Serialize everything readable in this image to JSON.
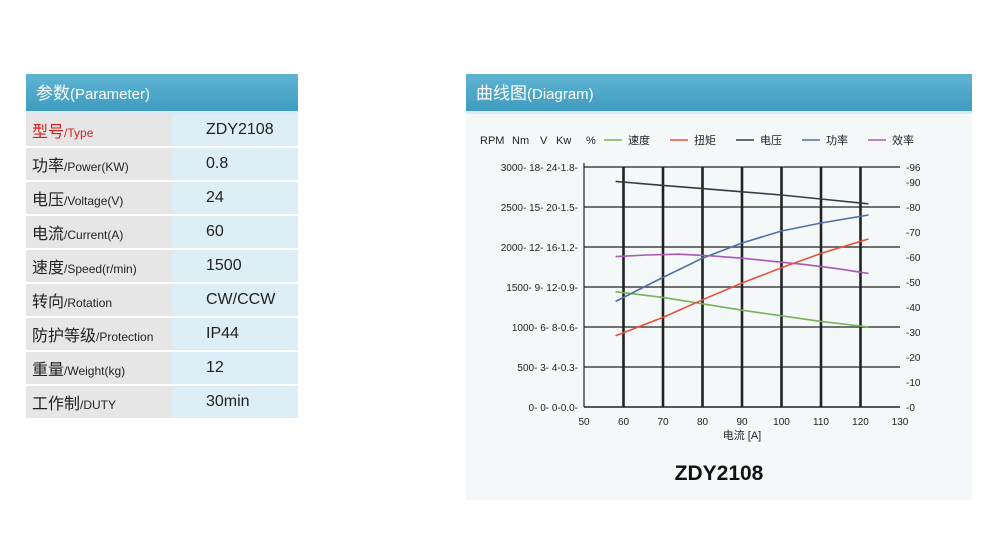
{
  "parameter_panel": {
    "title_cn": "参数",
    "title_en": "(Parameter)",
    "rows": [
      {
        "label_cn": "型号",
        "label_en": "/Type",
        "value": "ZDY2108",
        "highlight": true
      },
      {
        "label_cn": "功率",
        "label_en": "/Power(KW)",
        "value": "0.8"
      },
      {
        "label_cn": "电压",
        "label_en": "/Voltage(V)",
        "value": "24"
      },
      {
        "label_cn": "电流",
        "label_en": "/Current(A)",
        "value": "60"
      },
      {
        "label_cn": "速度",
        "label_en": "/Speed(r/min)",
        "value": "1500"
      },
      {
        "label_cn": "转向",
        "label_en": "/Rotation",
        "value": "CW/CCW"
      },
      {
        "label_cn": "防护等级",
        "label_en": "/Protection",
        "value": "IP44"
      },
      {
        "label_cn": "重量",
        "label_en": "/Weight(kg)",
        "value": "12"
      },
      {
        "label_cn": "工作制",
        "label_en": "/DUTY",
        "value": "30min"
      }
    ]
  },
  "diagram_panel": {
    "title_cn": "曲线图",
    "title_en": "(Diagram)",
    "caption": "ZDY2108"
  },
  "chart_data": {
    "type": "line",
    "xlabel": "电流 [A]",
    "xlim": [
      50,
      130
    ],
    "x_ticks": [
      50,
      60,
      70,
      80,
      90,
      100,
      110,
      120,
      130
    ],
    "y_units_header": [
      "RPM",
      "Nm",
      "V",
      "Kw",
      "%"
    ],
    "y_left_ticks": [
      "0- 0- 0-0.0",
      "500- 3- 4-0.3",
      "1000- 6- 8-0.6",
      "1500- 9- 12-0.9",
      "2000- 12- 16-1.2",
      "2500- 15- 20-1.5",
      "3000- 18- 24-1.8"
    ],
    "y_left_rpm_range": [
      0,
      3000
    ],
    "y_right_ticks": [
      0,
      10,
      20,
      30,
      40,
      50,
      60,
      70,
      80,
      90,
      96
    ],
    "y_right_range": [
      0,
      96
    ],
    "grid": true,
    "legend_position": "top",
    "series": [
      {
        "name": "速度",
        "color": "#77b255",
        "x": [
          58,
          70,
          80,
          90,
          100,
          110,
          122
        ],
        "rpm": [
          1440,
          1370,
          1290,
          1210,
          1140,
          1070,
          1000
        ]
      },
      {
        "name": "扭矩",
        "color": "#e8503e",
        "x": [
          58,
          70,
          80,
          90,
          100,
          110,
          122
        ],
        "rpm": [
          890,
          1120,
          1340,
          1550,
          1740,
          1920,
          2100
        ]
      },
      {
        "name": "电压",
        "color": "#333a44",
        "x": [
          58,
          70,
          80,
          90,
          100,
          110,
          122
        ],
        "rpm": [
          2820,
          2770,
          2730,
          2690,
          2650,
          2600,
          2540
        ]
      },
      {
        "name": "功率",
        "color": "#4c6fa8",
        "x": [
          58,
          70,
          80,
          90,
          100,
          110,
          122
        ],
        "rpm": [
          1320,
          1620,
          1860,
          2050,
          2200,
          2300,
          2400
        ]
      },
      {
        "name": "效率",
        "color": "#a85ab0",
        "x": [
          58,
          66,
          74,
          82,
          90,
          98,
          106,
          114,
          122
        ],
        "rpm": [
          1880,
          1900,
          1910,
          1890,
          1860,
          1820,
          1780,
          1730,
          1670
        ]
      }
    ]
  }
}
